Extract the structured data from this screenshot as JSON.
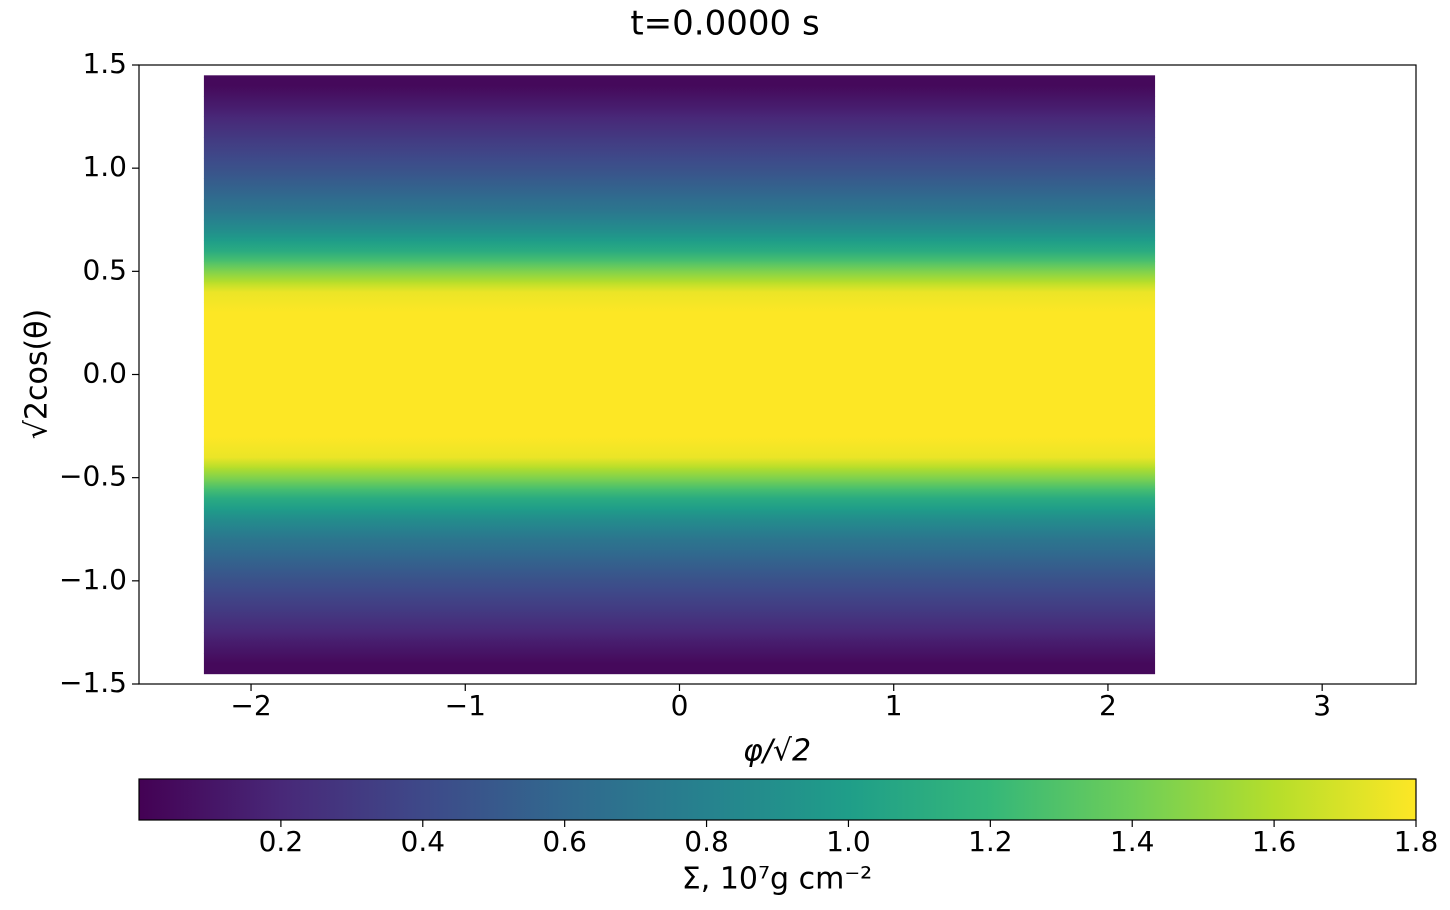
{
  "chart_data": {
    "type": "heatmap",
    "title": "t=0.0000 s",
    "xlabel": "φ/√2",
    "ylabel": "√2cos(θ)",
    "xlim": [
      -2.523,
      3.438
    ],
    "ylim": [
      -1.5,
      1.5
    ],
    "xticks": [
      {
        "value": -2,
        "label": "−2"
      },
      {
        "value": -1,
        "label": "−1"
      },
      0,
      1,
      2,
      3
    ],
    "yticks": [
      {
        "value": -1.5,
        "label": "−1.5"
      },
      {
        "value": -1.0,
        "label": "−1.0"
      },
      {
        "value": -0.5,
        "label": "−0.5"
      },
      {
        "value": 0,
        "label": "0.0"
      },
      0.5,
      {
        "value": 1.0,
        "label": "1.0"
      },
      1.5
    ],
    "x_extent": [
      -2.22,
      2.22
    ],
    "y": [
      -1.4,
      -1.3,
      -1.2,
      -1.1,
      -1.0,
      -0.9,
      -0.8,
      -0.7,
      -0.6,
      -0.5,
      -0.4,
      -0.3,
      -0.2,
      -0.1,
      0,
      0.1,
      0.2,
      0.3,
      0.4,
      0.5,
      0.6,
      0.7,
      0.8,
      0.9,
      1.0,
      1.1,
      1.2,
      1.3,
      1.4
    ],
    "values": [
      0.04,
      0.14,
      0.25,
      0.35,
      0.45,
      0.57,
      0.7,
      0.88,
      1.1,
      1.45,
      1.75,
      1.8,
      1.8,
      1.8,
      1.8,
      1.8,
      1.8,
      1.8,
      1.75,
      1.45,
      1.1,
      0.88,
      0.7,
      0.57,
      0.45,
      0.35,
      0.25,
      0.14,
      0.04
    ],
    "colormap": "viridis",
    "colorbar": {
      "label": "Σ, 10⁷g cm⁻²",
      "lim": [
        0,
        1.8
      ],
      "ticks": [
        0.2,
        0.4,
        0.6,
        0.8,
        {
          "value": 1.0,
          "label": "1.0"
        },
        1.2,
        1.4,
        1.6,
        1.8
      ]
    }
  }
}
